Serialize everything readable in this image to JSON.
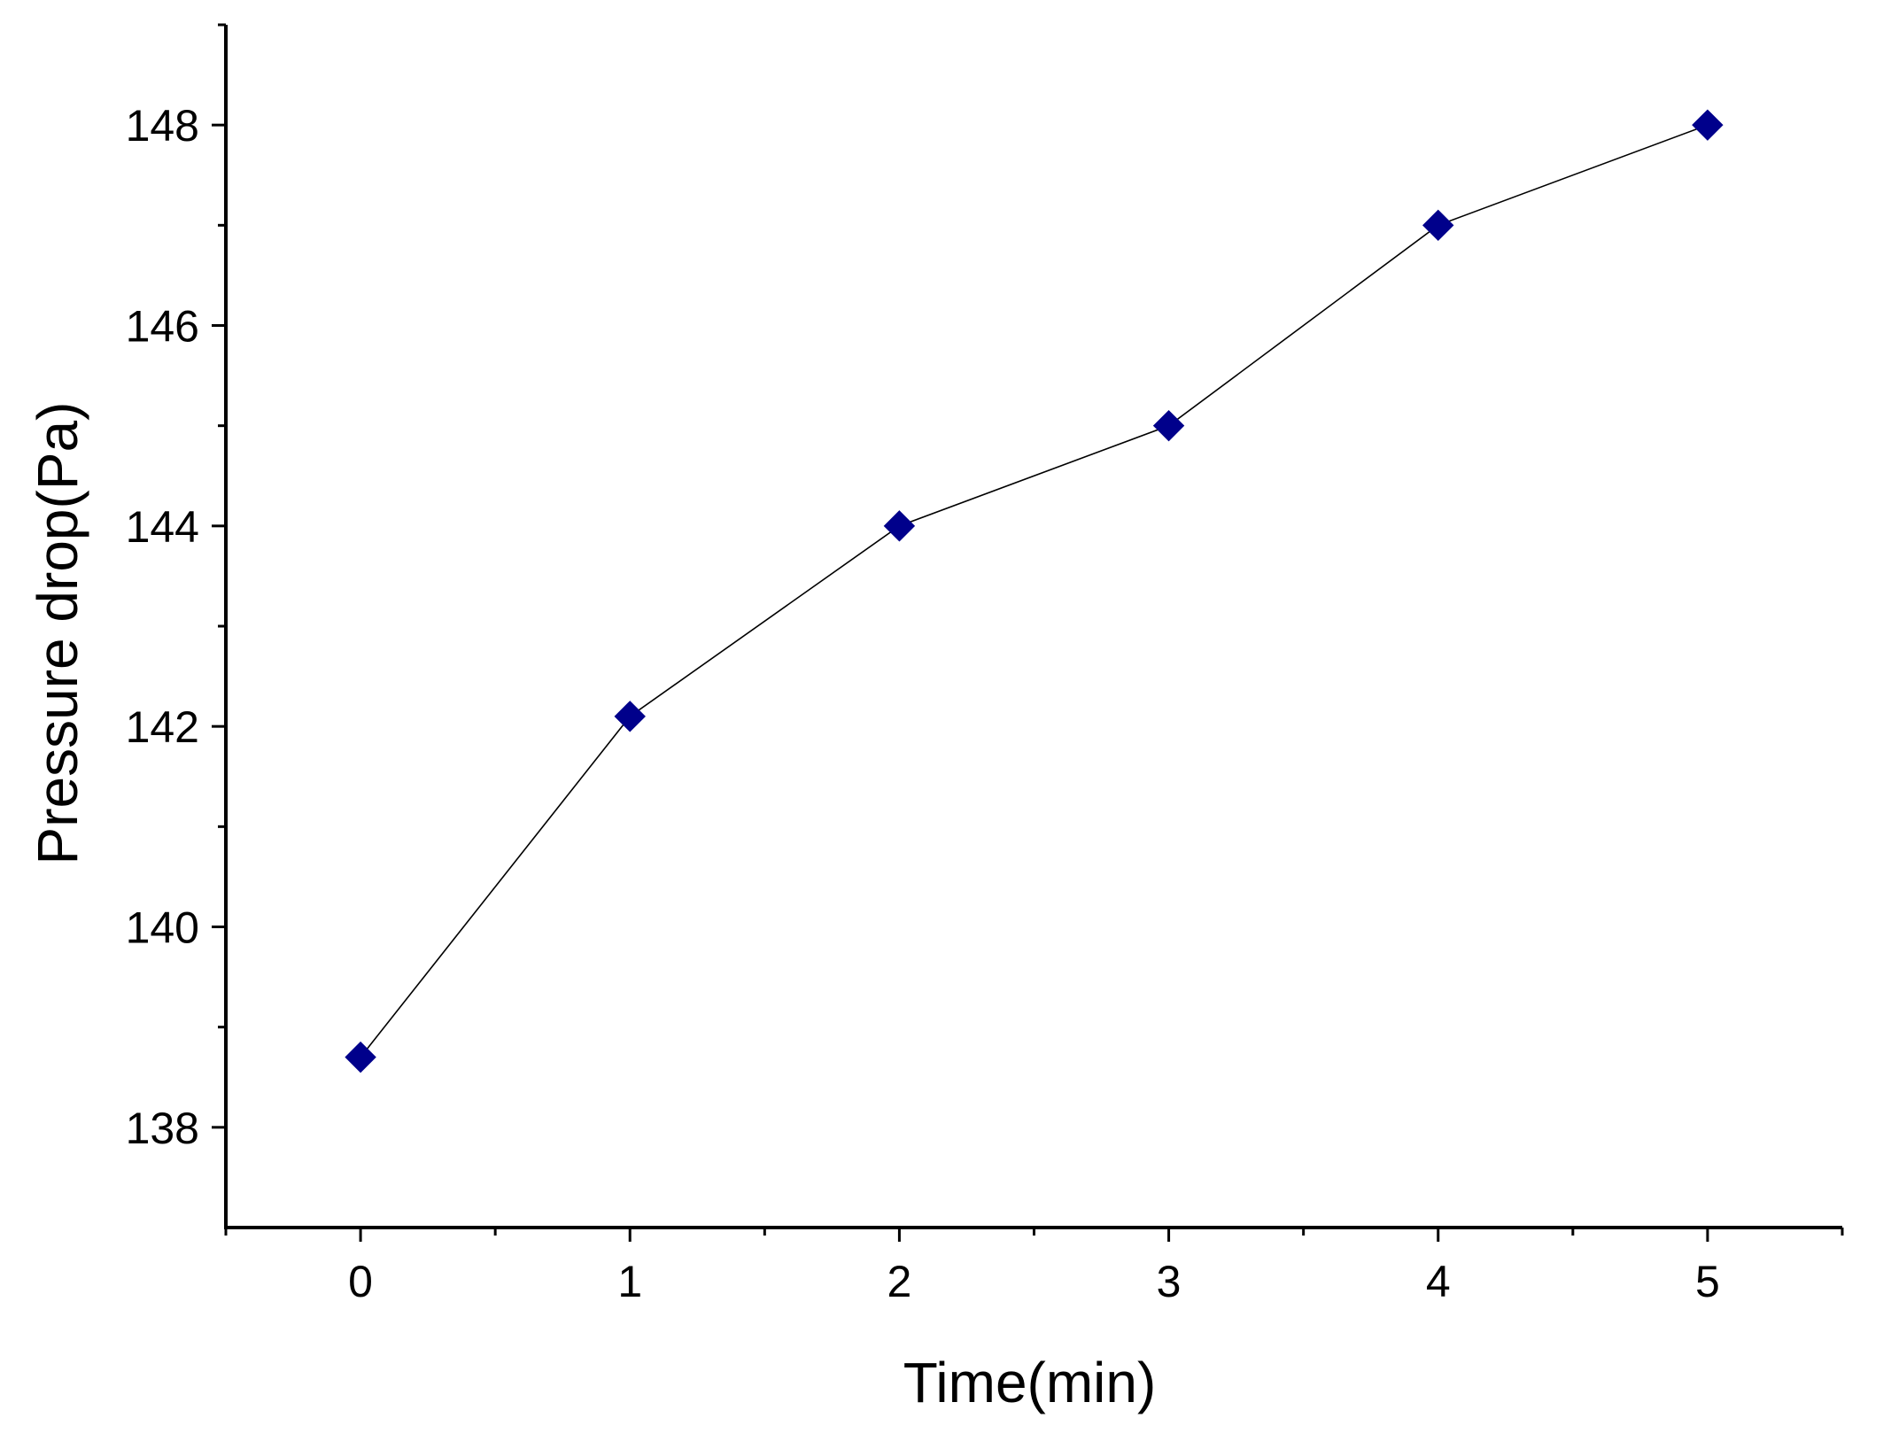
{
  "chart_data": {
    "type": "line",
    "title": "",
    "xlabel": "Time(min)",
    "ylabel": "Pressure drop(Pa)",
    "x": [
      0,
      1,
      2,
      3,
      4,
      5
    ],
    "series": [
      {
        "name": "",
        "values": [
          138.7,
          142.1,
          144.0,
          145.0,
          147.0,
          148.0
        ]
      }
    ],
    "xlim": [
      -0.5,
      5.5
    ],
    "ylim": [
      137,
      149
    ],
    "x_ticks": [
      "0",
      "1",
      "2",
      "3",
      "4",
      "5"
    ],
    "y_ticks": [
      "138",
      "140",
      "142",
      "144",
      "146",
      "148"
    ],
    "x_tick_values": [
      0,
      1,
      2,
      3,
      4,
      5
    ],
    "y_tick_values": [
      138,
      140,
      142,
      144,
      146,
      148
    ],
    "x_minor_tick_values": [
      -0.5,
      0.5,
      1.5,
      2.5,
      3.5,
      4.5,
      5.5
    ],
    "y_minor_tick_values": [
      139,
      141,
      143,
      145,
      147,
      149
    ],
    "grid": false,
    "legend": "none",
    "colors": {
      "marker": "#00008b",
      "line": "#000000",
      "axis": "#000000"
    },
    "marker": "diamond"
  }
}
